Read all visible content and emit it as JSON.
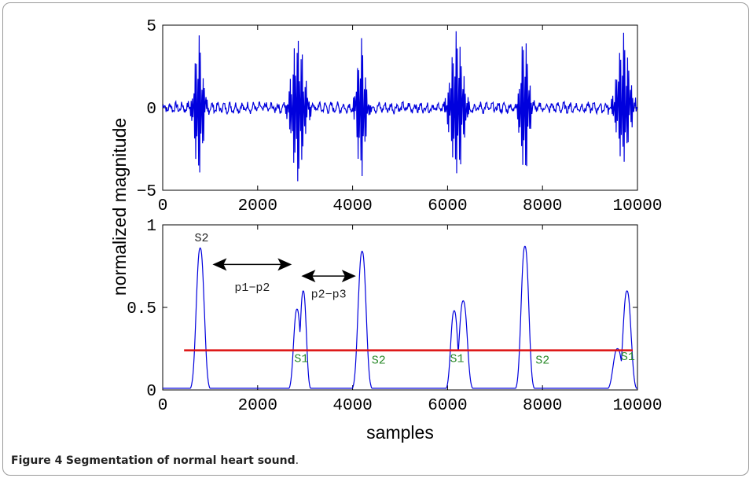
{
  "caption": {
    "label": "Figure 4",
    "text": "Segmentation of normal heart sound",
    "period": "."
  },
  "colors": {
    "signal": "#0000dd",
    "threshold": "#dd1111",
    "segment_label": "#2a8a2a",
    "arrow": "#000000"
  },
  "chart_data": [
    {
      "type": "line",
      "title": "",
      "xlabel": "",
      "ylabel": "normalized magnitude",
      "xlim": [
        0,
        10000
      ],
      "ylim": [
        -5,
        5
      ],
      "xticks": [
        "0",
        "2000",
        "4000",
        "6000",
        "8000",
        "10000"
      ],
      "yticks": [
        "5",
        "0",
        "−5"
      ],
      "grid": false,
      "series": [
        {
          "description": "heart sound waveform",
          "noise_amplitude": 0.15,
          "bursts": [
            {
              "center": 760,
              "width": 120,
              "max": 4.5,
              "min": -4.6
            },
            {
              "center": 2850,
              "width": 180,
              "max": 4.5,
              "min": -4.4
            },
            {
              "center": 4180,
              "width": 120,
              "max": 4.3,
              "min": -4.5
            },
            {
              "center": 6200,
              "width": 180,
              "max": 4.6,
              "min": -4.4
            },
            {
              "center": 7620,
              "width": 120,
              "max": 4.5,
              "min": -4.3
            },
            {
              "center": 9700,
              "width": 180,
              "max": 4.5,
              "min": -3.5
            }
          ]
        }
      ]
    },
    {
      "type": "line",
      "title": "",
      "xlabel": "samples",
      "ylabel": "normalized magnitude",
      "xlim": [
        0,
        10000
      ],
      "ylim": [
        0,
        1
      ],
      "xticks": [
        "0",
        "2000",
        "4000",
        "6000",
        "8000",
        "10000"
      ],
      "yticks": [
        "1",
        "0.5",
        "0"
      ],
      "grid": false,
      "series": [
        {
          "description": "envelope",
          "baseline": 0.01,
          "peaks": [
            {
              "center": 790,
              "height": 0.86,
              "width": 110
            },
            {
              "center": 2830,
              "height": 0.49,
              "width": 95
            },
            {
              "center": 2960,
              "height": 0.6,
              "width": 85
            },
            {
              "center": 4200,
              "height": 0.84,
              "width": 110
            },
            {
              "center": 6140,
              "height": 0.48,
              "width": 95
            },
            {
              "center": 6330,
              "height": 0.54,
              "width": 110
            },
            {
              "center": 7630,
              "height": 0.87,
              "width": 105
            },
            {
              "center": 9780,
              "height": 0.6,
              "width": 110
            },
            {
              "center": 9580,
              "height": 0.25,
              "width": 120
            }
          ]
        },
        {
          "description": "threshold",
          "x": [
            450,
            9900
          ],
          "y": [
            0.24,
            0.24
          ]
        }
      ],
      "annotations": {
        "peak_label": {
          "text": "S2",
          "x": 820,
          "y": 0.9
        },
        "segments": [
          {
            "text": "S1",
            "x": 2920,
            "y": 0.17
          },
          {
            "text": "S2",
            "x": 4550,
            "y": 0.16
          },
          {
            "text": "S1",
            "x": 6200,
            "y": 0.17
          },
          {
            "text": "S2",
            "x": 8000,
            "y": 0.16
          },
          {
            "text": "S1",
            "x": 9800,
            "y": 0.18
          }
        ],
        "intervals": [
          {
            "text": "p1−p2",
            "x_from": 1050,
            "x_to": 2720,
            "y": 0.76,
            "label_y": 0.6
          },
          {
            "text": "p2−p3",
            "x_from": 2920,
            "x_to": 4070,
            "y": 0.69,
            "label_y": 0.56
          }
        ]
      }
    }
  ]
}
